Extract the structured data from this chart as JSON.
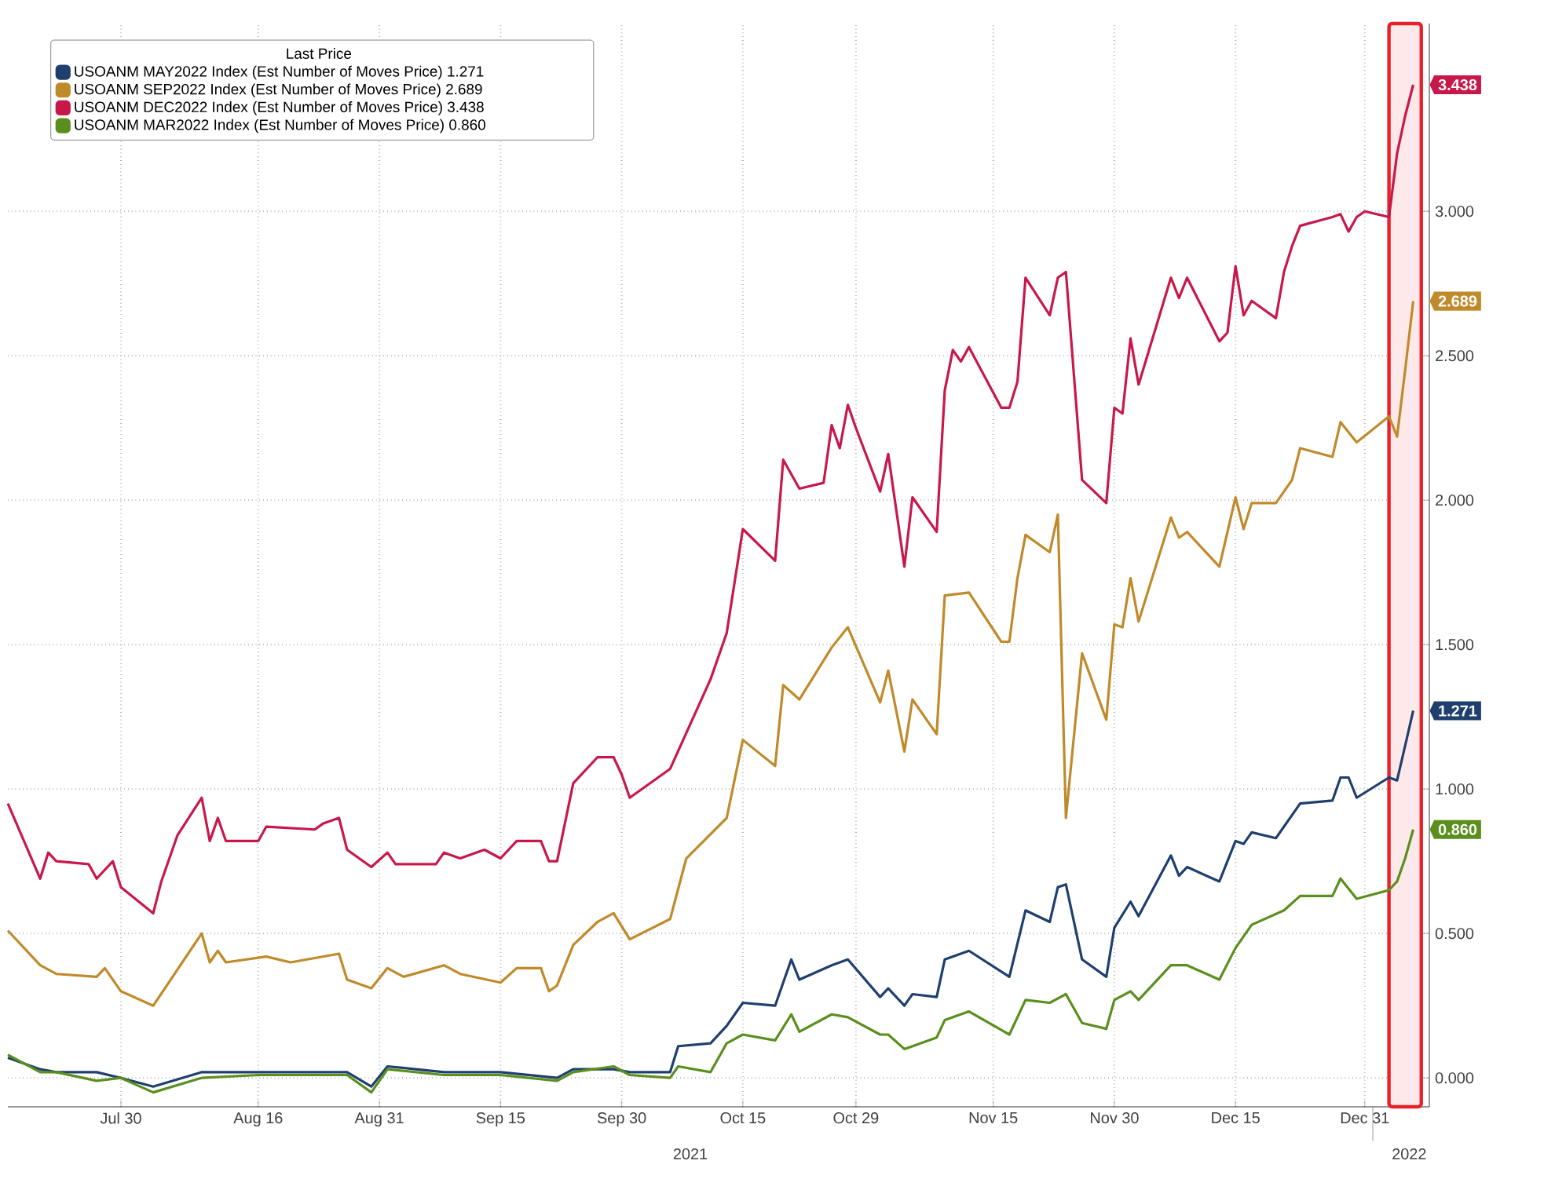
{
  "chart_data": {
    "type": "line",
    "legend_title": "Last Price",
    "legend": "top left",
    "grid": true,
    "xlim": [
      "2021-07-16",
      "2022-01-08"
    ],
    "ylim": [
      -0.1,
      3.65
    ],
    "xticks": [
      {
        "value": "2021-07-30",
        "label": "Jul 30"
      },
      {
        "value": "2021-08-16",
        "label": "Aug 16"
      },
      {
        "value": "2021-08-31",
        "label": "Aug 31"
      },
      {
        "value": "2021-09-15",
        "label": "Sep 15"
      },
      {
        "value": "2021-09-30",
        "label": "Sep 30"
      },
      {
        "value": "2021-10-15",
        "label": "Oct 15"
      },
      {
        "value": "2021-10-29",
        "label": "Oct 29"
      },
      {
        "value": "2021-11-15",
        "label": "Nov 15"
      },
      {
        "value": "2021-11-30",
        "label": "Nov 30"
      },
      {
        "value": "2021-12-15",
        "label": "Dec 15"
      },
      {
        "value": "2021-12-31",
        "label": "Dec 31"
      }
    ],
    "yticks": [
      {
        "value": 0,
        "label": "0.000"
      },
      {
        "value": 0.5,
        "label": "0.500"
      },
      {
        "value": 1,
        "label": "1.000"
      },
      {
        "value": 1.5,
        "label": "1.500"
      },
      {
        "value": 2,
        "label": "2.000"
      },
      {
        "value": 2.5,
        "label": "2.500"
      },
      {
        "value": 3,
        "label": "3.000"
      }
    ],
    "annotations": [
      "2021",
      "2022"
    ],
    "bands": [
      {
        "axis": "x",
        "from": "2022-01-03",
        "to": "2022-01-07",
        "color": "#e8202a"
      }
    ],
    "series": [
      {
        "name": "USOANM MAY2022 Index (Est Number of Moves Price) 1.271",
        "color": "#1f3f6e",
        "x": [
          "2021-07-16",
          "2021-07-20",
          "2021-07-22",
          "2021-07-27",
          "2021-07-30",
          "2021-08-03",
          "2021-08-09",
          "2021-08-16",
          "2021-08-27",
          "2021-08-30",
          "2021-09-01",
          "2021-09-08",
          "2021-09-15",
          "2021-09-22",
          "2021-09-24",
          "2021-09-29",
          "2021-10-01",
          "2021-10-06",
          "2021-10-07",
          "2021-10-11",
          "2021-10-13",
          "2021-10-15",
          "2021-10-19",
          "2021-10-21",
          "2021-10-22",
          "2021-10-26",
          "2021-10-28",
          "2021-11-01",
          "2021-11-02",
          "2021-11-04",
          "2021-11-05",
          "2021-11-08",
          "2021-11-09",
          "2021-11-12",
          "2021-11-17",
          "2021-11-19",
          "2021-11-22",
          "2021-11-23",
          "2021-11-24",
          "2021-11-26",
          "2021-11-29",
          "2021-11-30",
          "2021-12-02",
          "2021-12-03",
          "2021-12-07",
          "2021-12-08",
          "2021-12-09",
          "2021-12-13",
          "2021-12-15",
          "2021-12-16",
          "2021-12-17",
          "2021-12-20",
          "2021-12-23",
          "2021-12-27",
          "2021-12-28",
          "2021-12-29",
          "2021-12-30",
          "2022-01-03",
          "2022-01-04",
          "2022-01-05",
          "2022-01-06"
        ],
        "values": [
          0.07,
          0.03,
          0.02,
          0.02,
          0.0,
          -0.03,
          0.02,
          0.02,
          0.02,
          -0.03,
          0.04,
          0.02,
          0.02,
          0.0,
          0.03,
          0.03,
          0.02,
          0.02,
          0.11,
          0.12,
          0.18,
          0.26,
          0.25,
          0.41,
          0.34,
          0.39,
          0.41,
          0.28,
          0.31,
          0.25,
          0.29,
          0.28,
          0.41,
          0.44,
          0.35,
          0.58,
          0.54,
          0.66,
          0.67,
          0.41,
          0.35,
          0.52,
          0.61,
          0.56,
          0.77,
          0.7,
          0.73,
          0.68,
          0.82,
          0.81,
          0.85,
          0.83,
          0.95,
          0.96,
          1.04,
          1.04,
          0.97,
          1.04,
          1.03,
          1.15,
          1.271
        ],
        "value_labels": [
          null,
          null,
          null,
          null,
          null,
          null,
          null,
          null,
          null,
          null,
          null,
          null,
          null,
          null,
          null,
          null,
          null,
          null,
          null,
          null,
          null,
          null,
          null,
          null,
          null,
          null,
          null,
          null,
          null,
          null,
          null,
          null,
          null,
          null,
          null,
          null,
          null,
          null,
          null,
          null,
          null,
          null,
          null,
          null,
          null,
          null,
          null,
          null,
          null,
          null,
          null,
          null,
          null,
          null,
          null,
          null,
          null,
          null,
          null,
          null,
          "1.271"
        ]
      },
      {
        "name": "USOANM SEP2022 Index (Est Number of Moves Price) 2.689",
        "color": "#c08a2a",
        "x": [
          "2021-07-16",
          "2021-07-20",
          "2021-07-22",
          "2021-07-27",
          "2021-07-28",
          "2021-07-30",
          "2021-08-03",
          "2021-08-09",
          "2021-08-10",
          "2021-08-11",
          "2021-08-12",
          "2021-08-17",
          "2021-08-20",
          "2021-08-26",
          "2021-08-27",
          "2021-08-30",
          "2021-09-01",
          "2021-09-03",
          "2021-09-08",
          "2021-09-10",
          "2021-09-15",
          "2021-09-17",
          "2021-09-20",
          "2021-09-21",
          "2021-09-22",
          "2021-09-24",
          "2021-09-27",
          "2021-09-29",
          "2021-10-01",
          "2021-10-06",
          "2021-10-08",
          "2021-10-13",
          "2021-10-15",
          "2021-10-19",
          "2021-10-20",
          "2021-10-22",
          "2021-10-26",
          "2021-10-28",
          "2021-11-01",
          "2021-11-02",
          "2021-11-04",
          "2021-11-05",
          "2021-11-08",
          "2021-11-09",
          "2021-11-12",
          "2021-11-16",
          "2021-11-17",
          "2021-11-18",
          "2021-11-19",
          "2021-11-22",
          "2021-11-23",
          "2021-11-24",
          "2021-11-26",
          "2021-11-29",
          "2021-11-30",
          "2021-12-01",
          "2021-12-02",
          "2021-12-03",
          "2021-12-07",
          "2021-12-08",
          "2021-12-09",
          "2021-12-13",
          "2021-12-15",
          "2021-12-16",
          "2021-12-17",
          "2021-12-20",
          "2021-12-22",
          "2021-12-23",
          "2021-12-27",
          "2021-12-28",
          "2021-12-30",
          "2022-01-03",
          "2022-01-04",
          "2022-01-05",
          "2022-01-06"
        ],
        "values": [
          0.51,
          0.39,
          0.36,
          0.35,
          0.38,
          0.3,
          0.25,
          0.5,
          0.4,
          0.44,
          0.4,
          0.42,
          0.4,
          0.43,
          0.34,
          0.31,
          0.38,
          0.35,
          0.39,
          0.36,
          0.33,
          0.38,
          0.38,
          0.3,
          0.32,
          0.46,
          0.54,
          0.57,
          0.48,
          0.55,
          0.76,
          0.9,
          1.17,
          1.08,
          1.36,
          1.31,
          1.49,
          1.56,
          1.3,
          1.41,
          1.13,
          1.31,
          1.19,
          1.67,
          1.68,
          1.51,
          1.51,
          1.73,
          1.88,
          1.82,
          1.95,
          0.9,
          1.47,
          1.24,
          1.57,
          1.56,
          1.73,
          1.58,
          1.94,
          1.87,
          1.89,
          1.77,
          2.01,
          1.9,
          1.99,
          1.99,
          2.07,
          2.18,
          2.15,
          2.27,
          2.2,
          2.29,
          2.22,
          2.45,
          2.689
        ],
        "value_labels": [
          null,
          null,
          null,
          null,
          null,
          null,
          null,
          null,
          null,
          null,
          null,
          null,
          null,
          null,
          null,
          null,
          null,
          null,
          null,
          null,
          null,
          null,
          null,
          null,
          null,
          null,
          null,
          null,
          null,
          null,
          null,
          null,
          null,
          null,
          null,
          null,
          null,
          null,
          null,
          null,
          null,
          null,
          null,
          null,
          null,
          null,
          null,
          null,
          null,
          null,
          null,
          null,
          null,
          null,
          null,
          null,
          null,
          null,
          null,
          null,
          null,
          null,
          null,
          null,
          null,
          null,
          null,
          null,
          null,
          null,
          null,
          null,
          null,
          null,
          "2.689"
        ]
      },
      {
        "name": "USOANM DEC2022 Index (Est Number of Moves Price) 3.438",
        "color": "#c8184a",
        "x": [
          "2021-07-16",
          "2021-07-20",
          "2021-07-21",
          "2021-07-22",
          "2021-07-26",
          "2021-07-27",
          "2021-07-29",
          "2021-07-30",
          "2021-08-03",
          "2021-08-04",
          "2021-08-06",
          "2021-08-09",
          "2021-08-10",
          "2021-08-11",
          "2021-08-12",
          "2021-08-16",
          "2021-08-17",
          "2021-08-23",
          "2021-08-24",
          "2021-08-26",
          "2021-08-27",
          "2021-08-30",
          "2021-09-01",
          "2021-09-02",
          "2021-09-07",
          "2021-09-08",
          "2021-09-10",
          "2021-09-13",
          "2021-09-15",
          "2021-09-17",
          "2021-09-20",
          "2021-09-21",
          "2021-09-22",
          "2021-09-24",
          "2021-09-27",
          "2021-09-29",
          "2021-09-30",
          "2021-10-01",
          "2021-10-06",
          "2021-10-11",
          "2021-10-13",
          "2021-10-15",
          "2021-10-19",
          "2021-10-20",
          "2021-10-22",
          "2021-10-25",
          "2021-10-26",
          "2021-10-27",
          "2021-10-28",
          "2021-10-29",
          "2021-11-01",
          "2021-11-02",
          "2021-11-04",
          "2021-11-05",
          "2021-11-08",
          "2021-11-09",
          "2021-11-10",
          "2021-11-11",
          "2021-11-12",
          "2021-11-16",
          "2021-11-17",
          "2021-11-18",
          "2021-11-19",
          "2021-11-22",
          "2021-11-23",
          "2021-11-24",
          "2021-11-26",
          "2021-11-29",
          "2021-11-30",
          "2021-12-01",
          "2021-12-02",
          "2021-12-03",
          "2021-12-07",
          "2021-12-08",
          "2021-12-09",
          "2021-12-13",
          "2021-12-14",
          "2021-12-15",
          "2021-12-16",
          "2021-12-17",
          "2021-12-20",
          "2021-12-21",
          "2021-12-22",
          "2021-12-23",
          "2021-12-27",
          "2021-12-28",
          "2021-12-29",
          "2021-12-30",
          "2021-12-31",
          "2022-01-03",
          "2022-01-04",
          "2022-01-05",
          "2022-01-06"
        ],
        "values": [
          0.95,
          0.69,
          0.78,
          0.75,
          0.74,
          0.69,
          0.75,
          0.66,
          0.57,
          0.68,
          0.84,
          0.97,
          0.82,
          0.9,
          0.82,
          0.82,
          0.87,
          0.86,
          0.88,
          0.9,
          0.79,
          0.73,
          0.78,
          0.74,
          0.74,
          0.78,
          0.76,
          0.79,
          0.76,
          0.82,
          0.82,
          0.75,
          0.75,
          1.02,
          1.11,
          1.11,
          1.05,
          0.97,
          1.07,
          1.38,
          1.54,
          1.9,
          1.79,
          2.14,
          2.04,
          2.06,
          2.26,
          2.18,
          2.33,
          2.25,
          2.03,
          2.16,
          1.77,
          2.01,
          1.89,
          2.38,
          2.52,
          2.48,
          2.53,
          2.32,
          2.32,
          2.41,
          2.77,
          2.64,
          2.77,
          2.79,
          2.07,
          1.99,
          2.32,
          2.3,
          2.56,
          2.4,
          2.77,
          2.7,
          2.77,
          2.55,
          2.58,
          2.81,
          2.64,
          2.69,
          2.63,
          2.79,
          2.88,
          2.95,
          2.98,
          2.99,
          2.93,
          2.98,
          3.0,
          2.98,
          3.2,
          3.33,
          3.438
        ],
        "value_labels": [
          null,
          null,
          null,
          null,
          null,
          null,
          null,
          null,
          null,
          null,
          null,
          null,
          null,
          null,
          null,
          null,
          null,
          null,
          null,
          null,
          null,
          null,
          null,
          null,
          null,
          null,
          null,
          null,
          null,
          null,
          null,
          null,
          null,
          null,
          null,
          null,
          null,
          null,
          null,
          null,
          null,
          null,
          null,
          null,
          null,
          null,
          null,
          null,
          null,
          null,
          null,
          null,
          null,
          null,
          null,
          null,
          null,
          null,
          null,
          null,
          null,
          null,
          null,
          null,
          null,
          null,
          null,
          null,
          null,
          null,
          null,
          null,
          null,
          null,
          null,
          null,
          null,
          null,
          null,
          null,
          null,
          null,
          null,
          null,
          null,
          null,
          null,
          null,
          null,
          null,
          null,
          null,
          "3.438"
        ]
      },
      {
        "name": "USOANM MAR2022 Index (Est Number of Moves Price) 0.860",
        "color": "#5a8f1e",
        "x": [
          "2021-07-16",
          "2021-07-20",
          "2021-07-22",
          "2021-07-27",
          "2021-07-30",
          "2021-08-03",
          "2021-08-09",
          "2021-08-16",
          "2021-08-27",
          "2021-08-30",
          "2021-09-01",
          "2021-09-08",
          "2021-09-15",
          "2021-09-22",
          "2021-09-24",
          "2021-09-29",
          "2021-10-01",
          "2021-10-06",
          "2021-10-07",
          "2021-10-11",
          "2021-10-13",
          "2021-10-15",
          "2021-10-19",
          "2021-10-21",
          "2021-10-22",
          "2021-10-26",
          "2021-10-28",
          "2021-11-01",
          "2021-11-02",
          "2021-11-04",
          "2021-11-08",
          "2021-11-09",
          "2021-11-12",
          "2021-11-17",
          "2021-11-19",
          "2021-11-22",
          "2021-11-24",
          "2021-11-26",
          "2021-11-29",
          "2021-11-30",
          "2021-12-02",
          "2021-12-03",
          "2021-12-07",
          "2021-12-09",
          "2021-12-13",
          "2021-12-15",
          "2021-12-17",
          "2021-12-21",
          "2021-12-23",
          "2021-12-27",
          "2021-12-28",
          "2021-12-30",
          "2022-01-03",
          "2022-01-04",
          "2022-01-05",
          "2022-01-06"
        ],
        "values": [
          0.08,
          0.02,
          0.02,
          -0.01,
          0.0,
          -0.05,
          0.0,
          0.01,
          0.01,
          -0.05,
          0.03,
          0.01,
          0.01,
          -0.01,
          0.02,
          0.04,
          0.01,
          0.0,
          0.04,
          0.02,
          0.12,
          0.15,
          0.13,
          0.22,
          0.16,
          0.22,
          0.21,
          0.15,
          0.15,
          0.1,
          0.14,
          0.2,
          0.23,
          0.15,
          0.27,
          0.26,
          0.29,
          0.19,
          0.17,
          0.27,
          0.3,
          0.27,
          0.39,
          0.39,
          0.34,
          0.45,
          0.53,
          0.58,
          0.63,
          0.63,
          0.69,
          0.62,
          0.65,
          0.68,
          0.76,
          0.86
        ],
        "value_labels": [
          null,
          null,
          null,
          null,
          null,
          null,
          null,
          null,
          null,
          null,
          null,
          null,
          null,
          null,
          null,
          null,
          null,
          null,
          null,
          null,
          null,
          null,
          null,
          null,
          null,
          null,
          null,
          null,
          null,
          null,
          null,
          null,
          null,
          null,
          null,
          null,
          null,
          null,
          null,
          null,
          null,
          null,
          null,
          null,
          null,
          null,
          null,
          null,
          null,
          null,
          null,
          null,
          null,
          null,
          null,
          "0.860"
        ]
      }
    ]
  }
}
